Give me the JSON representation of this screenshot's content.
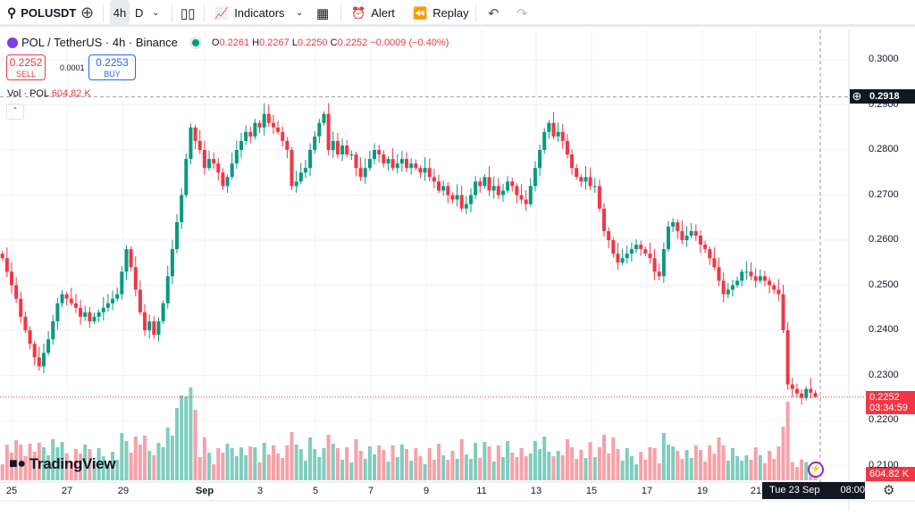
{
  "toolbar": {
    "symbol": "POLUSDT",
    "interval_active": "4h",
    "interval_other": "D",
    "indicators": "Indicators",
    "alert": "Alert",
    "replay": "Replay"
  },
  "legend": {
    "title": "POL / TetherUS · 4h · Binance",
    "o_label": "O",
    "o": "0.2261",
    "h_label": "H",
    "h": "0.2267",
    "l_label": "L",
    "l": "0.2250",
    "c_label": "C",
    "c": "0.2252",
    "change": "−0.0009 (−0.40%)"
  },
  "trade": {
    "sell_price": "0.2252",
    "sell_label": "SELL",
    "spread": "0.0001",
    "buy_price": "0.2253",
    "buy_label": "BUY"
  },
  "volume_legend": {
    "label": "Vol · POL",
    "value": "604.82 K"
  },
  "price_axis": {
    "ticks": [
      "0.3000",
      "0.2900",
      "0.2800",
      "0.2700",
      "0.2600",
      "0.2500",
      "0.2400",
      "0.2300",
      "0.2200",
      "0.2100"
    ],
    "crosshair_price": "0.2918",
    "current_price": "0.2252",
    "countdown": "03:34:59",
    "volume_value": "604.82 K"
  },
  "time_axis": {
    "ticks": [
      "25",
      "27",
      "29",
      "Sep",
      "3",
      "5",
      "7",
      "9",
      "11",
      "13",
      "15",
      "17",
      "19",
      "21"
    ],
    "crosshair_time": "Tue 23 Sep '25",
    "crosshair_clock": "08:00"
  },
  "logo": "TradingView",
  "colors": {
    "up": "#089981",
    "down": "#f23645",
    "up_vol": "#7fcdbf",
    "down_vol": "#f7a1a8"
  },
  "chart_data": {
    "type": "candlestick",
    "interval": "4h",
    "start": "Aug 24 20:00",
    "end": "Sep 23 08:00",
    "ylim": [
      0.205,
      0.305
    ],
    "last": {
      "open": 0.2261,
      "high": 0.2267,
      "low": 0.225,
      "close": 0.2252,
      "volume": "604.82 K"
    },
    "close": [
      0.256,
      0.253,
      0.25,
      0.247,
      0.243,
      0.24,
      0.237,
      0.234,
      0.232,
      0.235,
      0.238,
      0.242,
      0.246,
      0.248,
      0.247,
      0.246,
      0.245,
      0.243,
      0.244,
      0.242,
      0.243,
      0.244,
      0.245,
      0.246,
      0.247,
      0.248,
      0.253,
      0.258,
      0.254,
      0.249,
      0.244,
      0.24,
      0.242,
      0.239,
      0.242,
      0.246,
      0.252,
      0.258,
      0.264,
      0.27,
      0.278,
      0.285,
      0.282,
      0.28,
      0.276,
      0.278,
      0.277,
      0.275,
      0.272,
      0.274,
      0.277,
      0.28,
      0.282,
      0.284,
      0.283,
      0.286,
      0.285,
      0.288,
      0.286,
      0.285,
      0.284,
      0.282,
      0.28,
      0.272,
      0.273,
      0.275,
      0.276,
      0.28,
      0.283,
      0.286,
      0.288,
      0.28,
      0.282,
      0.279,
      0.281,
      0.279,
      0.279,
      0.276,
      0.274,
      0.276,
      0.278,
      0.28,
      0.279,
      0.277,
      0.278,
      0.276,
      0.277,
      0.278,
      0.276,
      0.277,
      0.276,
      0.275,
      0.276,
      0.274,
      0.273,
      0.271,
      0.272,
      0.27,
      0.269,
      0.27,
      0.267,
      0.268,
      0.27,
      0.273,
      0.272,
      0.274,
      0.271,
      0.272,
      0.27,
      0.271,
      0.273,
      0.272,
      0.27,
      0.269,
      0.268,
      0.272,
      0.276,
      0.28,
      0.284,
      0.286,
      0.283,
      0.284,
      0.282,
      0.279,
      0.276,
      0.274,
      0.273,
      0.274,
      0.272,
      0.272,
      0.267,
      0.262,
      0.26,
      0.257,
      0.255,
      0.256,
      0.257,
      0.258,
      0.259,
      0.258,
      0.257,
      0.256,
      0.253,
      0.252,
      0.258,
      0.263,
      0.264,
      0.262,
      0.26,
      0.261,
      0.262,
      0.261,
      0.259,
      0.258,
      0.256,
      0.254,
      0.251,
      0.248,
      0.249,
      0.25,
      0.251,
      0.253,
      0.253,
      0.252,
      0.251,
      0.252,
      0.251,
      0.25,
      0.249,
      0.248,
      0.24,
      0.228,
      0.227,
      0.226,
      0.225,
      0.227,
      0.2261,
      0.2252
    ]
  }
}
